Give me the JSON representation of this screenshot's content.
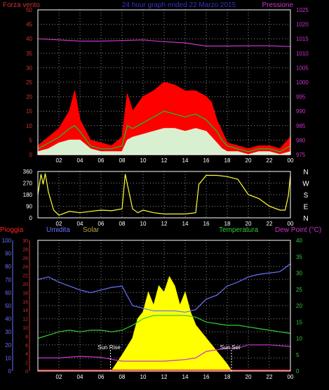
{
  "header": {
    "title": "24 hour graph ended 22 Marzo 2015",
    "left_label": "Forza vento",
    "right_label": "Pressione"
  },
  "colors": {
    "background": "#000000",
    "wind_gust": "#ff0000",
    "wind_avg": "#00cc33",
    "wind_speed": "#d8f0d0",
    "pressure": "#cc33cc",
    "direction": "#ffff33",
    "humidity": "#6a72ff",
    "temperature": "#33cc33",
    "dewpoint": "#cc33cc",
    "solar": "#ffff00",
    "rain": "#ff2222",
    "axis_left": "#cc3333",
    "axis_right": "#cc33cc",
    "axis_green": "#33cc33",
    "axis_blue": "#6a72ff",
    "axis_olive": "#b8a23c",
    "grid": "#888888"
  },
  "chart_data": [
    {
      "type": "line",
      "title": "24 hour graph ended 22 Marzo 2015",
      "x_tick_labels": [
        "02",
        "04",
        "06",
        "08",
        "10",
        "12",
        "14",
        "16",
        "18",
        "20",
        "22",
        "00"
      ],
      "left_axis": {
        "label": "Forza vento",
        "ticks": [
          0,
          5,
          10,
          15,
          20,
          25,
          30,
          35,
          40,
          45,
          50
        ],
        "range": [
          0,
          50
        ]
      },
      "right_axis": {
        "label": "Pressione",
        "ticks": [
          975,
          980,
          985,
          990,
          995,
          1000,
          1005,
          1010,
          1015,
          1020,
          1025
        ],
        "range": [
          975,
          1025
        ]
      },
      "grid": true,
      "series": [
        {
          "name": "Pressione",
          "x": [
            0,
            2,
            4,
            6,
            8,
            10,
            12,
            14,
            15,
            16,
            18,
            20,
            22,
            24
          ],
          "values": [
            1015,
            1014.6,
            1014.2,
            1014.2,
            1014.4,
            1014.6,
            1014.0,
            1013.6,
            1013.0,
            1012.5,
            1012.5,
            1012.6,
            1012.6,
            1012.3
          ]
        },
        {
          "x": [
            0,
            1,
            2,
            3,
            3.5,
            4,
            5,
            6,
            7,
            8,
            8.5,
            9,
            10,
            11,
            12,
            13,
            14,
            15,
            16,
            16.5,
            17,
            17.5,
            18,
            19,
            20,
            21,
            22,
            23,
            24
          ],
          "values": [
            3,
            6,
            9,
            15,
            22,
            12,
            5,
            4,
            3,
            6,
            21,
            15,
            20,
            22,
            25,
            24,
            22,
            22,
            20,
            18,
            12,
            8,
            4,
            3,
            2,
            3,
            3,
            2,
            6
          ]
        },
        {
          "x": [
            0,
            1,
            2,
            3,
            3.5,
            4,
            5,
            6,
            7,
            8,
            8.5,
            9,
            10,
            11,
            12,
            13,
            14,
            15,
            16,
            16.5,
            17,
            17.5,
            18,
            19,
            20,
            21,
            22,
            23,
            24
          ],
          "values": [
            2,
            4,
            6,
            9,
            10,
            8,
            3,
            2,
            2,
            3,
            10,
            9,
            11,
            13,
            15,
            14,
            13,
            14,
            12,
            10,
            8,
            5,
            3,
            2,
            1,
            2,
            2,
            1,
            3
          ]
        },
        {
          "x": [
            0,
            1,
            2,
            3,
            4,
            5,
            6,
            7,
            8,
            8.5,
            9,
            10,
            11,
            12,
            13,
            14,
            15,
            16,
            16.5,
            17,
            17.5,
            18,
            19,
            20,
            21,
            22,
            23,
            24
          ],
          "values": [
            1,
            2,
            4,
            5,
            5,
            2,
            1,
            1,
            1,
            5,
            6,
            7,
            8,
            9,
            9,
            8,
            9,
            8,
            6,
            4,
            2,
            1,
            1,
            0,
            1,
            1,
            0,
            1
          ]
        }
      ]
    },
    {
      "type": "line",
      "x_tick_labels": [
        "02",
        "04",
        "06",
        "08",
        "10",
        "12",
        "14",
        "16",
        "18",
        "20",
        "22",
        "00"
      ],
      "left_axis": {
        "ticks": [
          0,
          90,
          180,
          270,
          360
        ],
        "range": [
          0,
          360
        ]
      },
      "right_axis": {
        "ticks": [
          "N",
          "W",
          "S",
          "E",
          "N"
        ]
      },
      "grid": true,
      "series": [
        {
          "x": [
            0,
            0.3,
            0.5,
            0.7,
            1,
            1.5,
            2,
            3,
            4,
            5,
            6,
            7,
            8,
            8.3,
            8.5,
            9,
            9.5,
            10,
            11,
            12,
            13,
            14,
            15,
            15.3,
            16,
            17,
            18,
            19,
            20,
            21,
            22,
            23,
            23.5,
            23.8,
            24
          ],
          "values": [
            180,
            340,
            260,
            345,
            200,
            60,
            20,
            50,
            40,
            50,
            60,
            55,
            70,
            340,
            260,
            70,
            40,
            60,
            40,
            30,
            30,
            30,
            40,
            260,
            330,
            330,
            320,
            300,
            180,
            150,
            90,
            60,
            60,
            170,
            330
          ]
        }
      ]
    },
    {
      "type": "area",
      "header_labels": [
        "Pioggia",
        "Umidita",
        "Solar",
        "Temperatura",
        "Dew Point (°C)"
      ],
      "x_tick_labels": [
        "02",
        "04",
        "06",
        "08",
        "10",
        "12",
        "14",
        "16",
        "18",
        "20",
        "22",
        "00"
      ],
      "axes": [
        {
          "name": "Umidita",
          "ticks": [
            0,
            10,
            20,
            30,
            40,
            50,
            60,
            70,
            80,
            90,
            100
          ],
          "range": [
            0,
            100
          ]
        },
        {
          "name": "Pioggia",
          "ticks": [
            0,
            2,
            4,
            6,
            8,
            10,
            12,
            14,
            16,
            18,
            20,
            22,
            24,
            26,
            28,
            30
          ],
          "range": [
            0,
            30
          ]
        },
        {
          "name": "Temperatura",
          "ticks": [
            0,
            5,
            10,
            15,
            20,
            25,
            30,
            35,
            40
          ],
          "range": [
            0,
            40
          ]
        }
      ],
      "annotations": [
        {
          "text": "Sun Rise",
          "x": 6.9
        },
        {
          "text": "Sun Set",
          "x": 18.4
        }
      ],
      "grid": true,
      "series": [
        {
          "name": "Umidita",
          "x": [
            0,
            1,
            2,
            3,
            4,
            5,
            6,
            7,
            8,
            9,
            10,
            11,
            12,
            13,
            14,
            15,
            16,
            17,
            18,
            19,
            20,
            21,
            22,
            23,
            24
          ],
          "values": [
            70,
            72,
            68,
            65,
            62,
            60,
            62,
            64,
            65,
            50,
            48,
            46,
            46,
            46,
            45,
            47,
            55,
            58,
            65,
            68,
            72,
            74,
            75,
            76,
            82
          ]
        },
        {
          "name": "Temperatura",
          "x": [
            0,
            1,
            2,
            3,
            4,
            5,
            6,
            7,
            8,
            9,
            10,
            11,
            12,
            13,
            14,
            15,
            16,
            17,
            18,
            19,
            20,
            21,
            22,
            23,
            24
          ],
          "values": [
            10,
            11,
            12,
            12.5,
            12,
            12.5,
            12.5,
            12,
            12.5,
            14,
            16,
            17,
            17,
            17,
            17,
            16.5,
            15,
            14.5,
            14,
            14,
            13.5,
            13,
            12.5,
            12,
            11.5
          ]
        },
        {
          "name": "Dew Point",
          "x": [
            0,
            2,
            4,
            6,
            8,
            10,
            12,
            14,
            15,
            16,
            17,
            18,
            19,
            20,
            22,
            24
          ],
          "values": [
            4,
            4,
            4.5,
            4.2,
            3,
            3,
            3,
            3.5,
            4,
            6,
            6.5,
            7,
            7,
            8,
            8,
            7.5
          ]
        },
        {
          "name": "Solar",
          "x": [
            7,
            8,
            9,
            9.5,
            10,
            10.5,
            11,
            11.5,
            12,
            12.5,
            13,
            13.5,
            14,
            14.5,
            15,
            16,
            17,
            18,
            18.4
          ],
          "values": [
            0,
            12,
            25,
            40,
            45,
            60,
            50,
            65,
            60,
            72,
            65,
            50,
            60,
            45,
            35,
            25,
            15,
            5,
            0
          ]
        },
        {
          "name": "Pioggia",
          "x": [
            0,
            24
          ],
          "values": [
            0,
            0
          ]
        }
      ]
    }
  ]
}
